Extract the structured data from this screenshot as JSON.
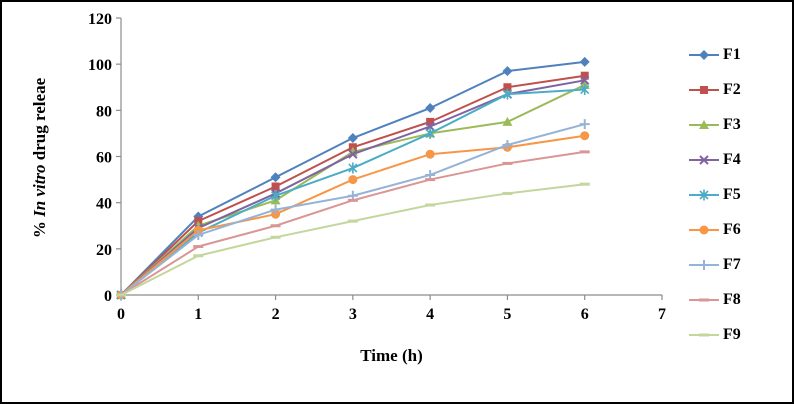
{
  "chart_data": {
    "type": "line",
    "title": "",
    "xlabel": "Time (h)",
    "ylabel": "% In vitro drug releae",
    "ylabel_parts": {
      "prefix": "% ",
      "italic": "In vitro",
      "suffix": " drug releae"
    },
    "x": [
      0,
      1,
      2,
      3,
      4,
      5,
      6
    ],
    "xlim": [
      0,
      7
    ],
    "ylim": [
      0,
      120
    ],
    "x_ticks": [
      0,
      1,
      2,
      3,
      4,
      5,
      6,
      7
    ],
    "y_ticks": [
      0,
      20,
      40,
      60,
      80,
      100,
      120
    ],
    "grid": false,
    "legend_position": "right",
    "series": [
      {
        "name": "F1",
        "color": "#4F81BD",
        "marker": "diamond",
        "values": [
          0,
          34,
          51,
          68,
          81,
          97,
          101
        ]
      },
      {
        "name": "F2",
        "color": "#C0504D",
        "marker": "square",
        "values": [
          0,
          32,
          47,
          64,
          75,
          90,
          95
        ]
      },
      {
        "name": "F3",
        "color": "#9BBB59",
        "marker": "triangle",
        "values": [
          0,
          30,
          41,
          62,
          70,
          75,
          91
        ]
      },
      {
        "name": "F4",
        "color": "#8064A2",
        "marker": "x",
        "values": [
          0,
          29,
          44,
          61,
          73,
          87,
          93
        ]
      },
      {
        "name": "F5",
        "color": "#4BACC6",
        "marker": "star",
        "values": [
          0,
          27,
          43,
          55,
          70,
          87,
          89
        ]
      },
      {
        "name": "F6",
        "color": "#F79646",
        "marker": "circle",
        "values": [
          0,
          28,
          35,
          50,
          61,
          64,
          69
        ]
      },
      {
        "name": "F7",
        "color": "#95B3D7",
        "marker": "plus",
        "values": [
          0,
          26,
          37,
          43,
          52,
          65,
          74
        ]
      },
      {
        "name": "F8",
        "color": "#D99694",
        "marker": "dash",
        "values": [
          0,
          21,
          30,
          41,
          50,
          57,
          62
        ]
      },
      {
        "name": "F9",
        "color": "#C3D69B",
        "marker": "dash",
        "values": [
          0,
          17,
          25,
          32,
          39,
          44,
          48
        ]
      }
    ]
  }
}
